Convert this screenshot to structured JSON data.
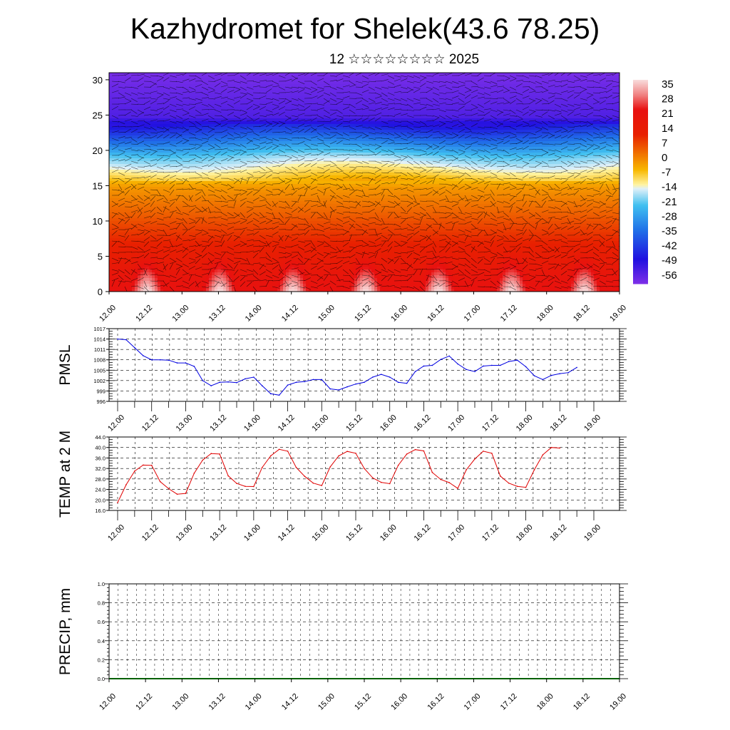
{
  "title": "Kazhydromet for Shelek(43.6 78.25)",
  "subtitle": "12 ☆☆☆☆☆☆☆☆ 2025",
  "time_labels": [
    "12.00",
    "12.12",
    "13.00",
    "13.12",
    "14.00",
    "14.12",
    "15.00",
    "15.12",
    "16.00",
    "16.12",
    "17.00",
    "17.12",
    "18.00",
    "18.12",
    "19.00"
  ],
  "chart_data": [
    {
      "type": "heatmap",
      "name": "temperature-wind cross section",
      "y_ticks": [
        "0",
        "5",
        "10",
        "15",
        "20",
        "25",
        "30"
      ],
      "ylim": [
        0,
        31
      ],
      "colorbar_labels": [
        "35",
        "28",
        "21",
        "14",
        "7",
        "0",
        "-7",
        "-14",
        "-21",
        "-28",
        "-35",
        "-42",
        "-49",
        "-56"
      ],
      "colorbar_range": [
        -60,
        38
      ],
      "color_stops": [
        {
          "v": 38,
          "c": "#f8d8d8"
        },
        {
          "v": 31,
          "c": "#f08080"
        },
        {
          "v": 24,
          "c": "#e81010"
        },
        {
          "v": 12,
          "c": "#e82000"
        },
        {
          "v": 3,
          "c": "#f07000"
        },
        {
          "v": -5,
          "c": "#f8b800"
        },
        {
          "v": -12,
          "c": "#fff3a0"
        },
        {
          "v": -14,
          "c": "#e0f0f8"
        },
        {
          "v": -22,
          "c": "#40c0f0"
        },
        {
          "v": -34,
          "c": "#2070e8"
        },
        {
          "v": -48,
          "c": "#2010e0"
        },
        {
          "v": -60,
          "c": "#8030e8"
        }
      ]
    },
    {
      "type": "line",
      "ylabel": "PMSL",
      "ylim": [
        996,
        1017
      ],
      "y_ticks": [
        "996",
        "999",
        "1002",
        "1005",
        "1008",
        "1011",
        "1014",
        "1017"
      ],
      "color": "#0000e0",
      "x": [
        0,
        3,
        6,
        9,
        12,
        15,
        18,
        21,
        24,
        27,
        30,
        33,
        36,
        39,
        42,
        45,
        48,
        51,
        54,
        57,
        60,
        63,
        66,
        69,
        72,
        75,
        78,
        81,
        84,
        87,
        90,
        93,
        96,
        99,
        102,
        105,
        108,
        111,
        114,
        117,
        120,
        123,
        126,
        129,
        132,
        135,
        138,
        141,
        144,
        147,
        150,
        153,
        156,
        159,
        162,
        165,
        168
      ],
      "values": [
        1014,
        1013.8,
        1011.5,
        1009.2,
        1008,
        1008,
        1007.9,
        1007.1,
        1007.1,
        1006.1,
        1002,
        1000.5,
        1001.5,
        1001.6,
        1001.4,
        1002.5,
        1003,
        1000.5,
        998.2,
        997.8,
        1000.7,
        1001.5,
        1001.7,
        1002.3,
        1002.3,
        999.6,
        999.3,
        1000.2,
        1001,
        1001.5,
        1003,
        1003.8,
        1003,
        1001.5,
        1001.2,
        1004.6,
        1006.2,
        1006.4,
        1008.1,
        1009.1,
        1006.8,
        1005.2,
        1004.6,
        1006.2,
        1006.4,
        1006.4,
        1007.5,
        1007.9,
        1006,
        1003.4,
        1002.3,
        1003.5,
        1004,
        1004.3,
        1005.8,
        null,
        null
      ]
    },
    {
      "type": "line",
      "ylabel": "TEMP at 2 M",
      "ylim": [
        16,
        44
      ],
      "y_ticks": [
        "16.0",
        "20.0",
        "24.0",
        "28.0",
        "32.0",
        "36.0",
        "40.0",
        "44.0"
      ],
      "color": "#e00000",
      "x": [
        0,
        3,
        6,
        9,
        12,
        15,
        18,
        21,
        24,
        27,
        30,
        33,
        36,
        39,
        42,
        45,
        48,
        51,
        54,
        57,
        60,
        63,
        66,
        69,
        72,
        75,
        78,
        81,
        84,
        87,
        90,
        93,
        96,
        99,
        102,
        105,
        108,
        111,
        114,
        117,
        120,
        123,
        126,
        129,
        132,
        135,
        138,
        141,
        144,
        147,
        150,
        153,
        156
      ],
      "values": [
        19,
        25.8,
        31,
        33.3,
        33.2,
        27,
        24.3,
        22.2,
        22.5,
        30.2,
        35.2,
        37.7,
        37.5,
        29.2,
        26.3,
        25.2,
        25.1,
        32.4,
        36.8,
        39.3,
        38.6,
        32.4,
        29,
        26.4,
        25.5,
        32.6,
        36.8,
        38.5,
        37.8,
        32,
        28.4,
        26.7,
        26.2,
        33.2,
        37.5,
        39.2,
        38.7,
        30.5,
        27.8,
        26.6,
        24.4,
        31.5,
        35.6,
        38.6,
        37.8,
        29.1,
        26.4,
        25.2,
        24.8,
        31.5,
        37.2,
        40,
        39.8
      ]
    },
    {
      "type": "bar",
      "ylabel": "PRECIP, mm",
      "ylim": [
        0,
        1
      ],
      "y_ticks": [
        "0.0",
        "0.2",
        "0.4",
        "0.6",
        "0.8",
        "1.0"
      ],
      "values": []
    }
  ]
}
